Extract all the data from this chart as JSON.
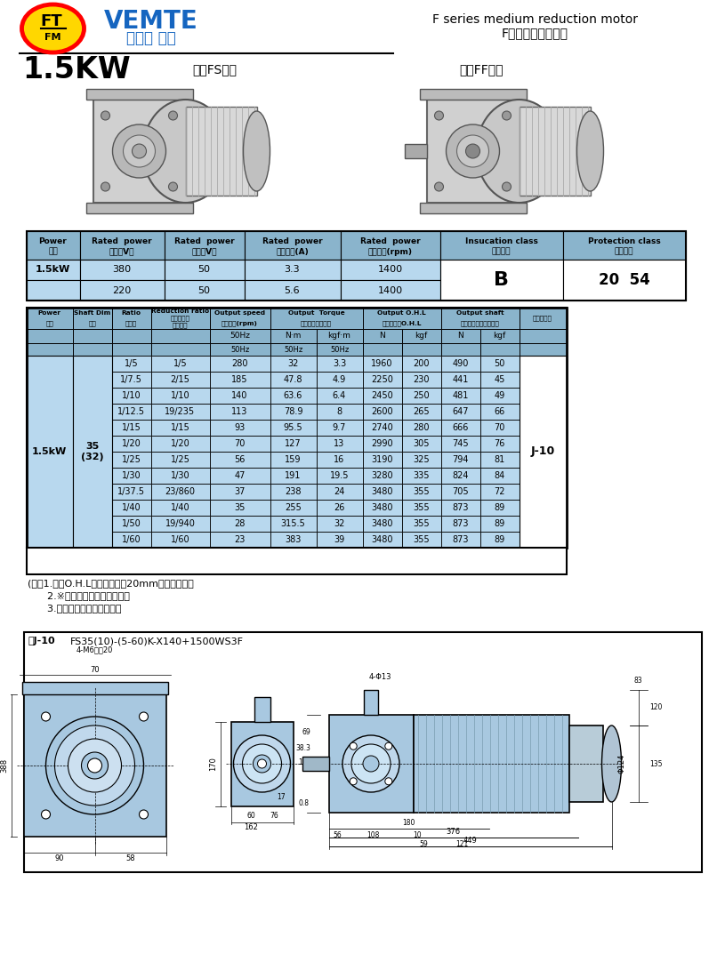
{
  "title_en": "F series medium reduction motor",
  "title_cn": "F系列中型減速電機",
  "power_label": "1.5KW",
  "series1_label": "中空FS系列",
  "series2_label": "中實FF系列",
  "brand_name": "VEMTE",
  "brand_cn": "減速機 電機",
  "header1_row1": [
    "Power",
    "Rated  power",
    "Rated  power",
    "Rated  power",
    "Rated  power",
    "Insucation class",
    "Protection class"
  ],
  "header1_row2": [
    "功率",
    "電壓（V）",
    "頻率（V）",
    "額定電流(A)",
    "額定轉速(rpm)",
    "絕縣等級",
    "防護等級"
  ],
  "table1_data": [
    [
      "1.5kW",
      "380",
      "50",
      "3.3",
      "1400",
      "B",
      "20  54"
    ],
    [
      "",
      "220",
      "50",
      "5.6",
      "1400",
      "",
      ""
    ]
  ],
  "table2_rows": [
    [
      "1/5",
      "1/5",
      "280",
      "32",
      "3.3",
      "1960",
      "200",
      "490",
      "50"
    ],
    [
      "1/7.5",
      "2/15",
      "185",
      "47.8",
      "4.9",
      "2250",
      "230",
      "441",
      "45"
    ],
    [
      "1/10",
      "1/10",
      "140",
      "63.6",
      "6.4",
      "2450",
      "250",
      "481",
      "49"
    ],
    [
      "1/12.5",
      "19/235",
      "113",
      "78.9",
      "8",
      "2600",
      "265",
      "647",
      "66"
    ],
    [
      "1/15",
      "1/15",
      "93",
      "95.5",
      "9.7",
      "2740",
      "280",
      "666",
      "70"
    ],
    [
      "1/20",
      "1/20",
      "70",
      "127",
      "13",
      "2990",
      "305",
      "745",
      "76"
    ],
    [
      "1/25",
      "1/25",
      "56",
      "159",
      "16",
      "3190",
      "325",
      "794",
      "81"
    ],
    [
      "1/30",
      "1/30",
      "47",
      "191",
      "19.5",
      "3280",
      "335",
      "824",
      "84"
    ],
    [
      "1/37.5",
      "23/860",
      "37",
      "238",
      "24",
      "3480",
      "355",
      "705",
      "72"
    ],
    [
      "1/40",
      "1/40",
      "35",
      "255",
      "26",
      "3480",
      "355",
      "873",
      "89"
    ],
    [
      "1/50",
      "19/940",
      "28",
      "315.5",
      "32",
      "3480",
      "355",
      "873",
      "89"
    ],
    [
      "1/60",
      "1/60",
      "23",
      "383",
      "39",
      "3480",
      "355",
      "873",
      "89"
    ]
  ],
  "power_col": "1.5kW",
  "shaft_dim": "35\n(32)",
  "shaft_dim_label": "J-10",
  "notes": [
    "(注）1.彎矩O.H.L満輸出軸端逄20mm位置的數值。",
    "      2.※標記高轉矩力變限機型。",
    "      3.括號（）満實心軸軸徑。"
  ],
  "diagram_label": "圖J-10",
  "diagram_code": "FS35(10)-(5-60)K-X140+1500WS3F",
  "bg_table": "#b8d8ee",
  "bg_header": "#8ab4cc",
  "bg_white": "#ffffff",
  "motor_blue": "#a8c8e0",
  "motor_gray": "#c0c0c0",
  "motor_dark": "#888888"
}
